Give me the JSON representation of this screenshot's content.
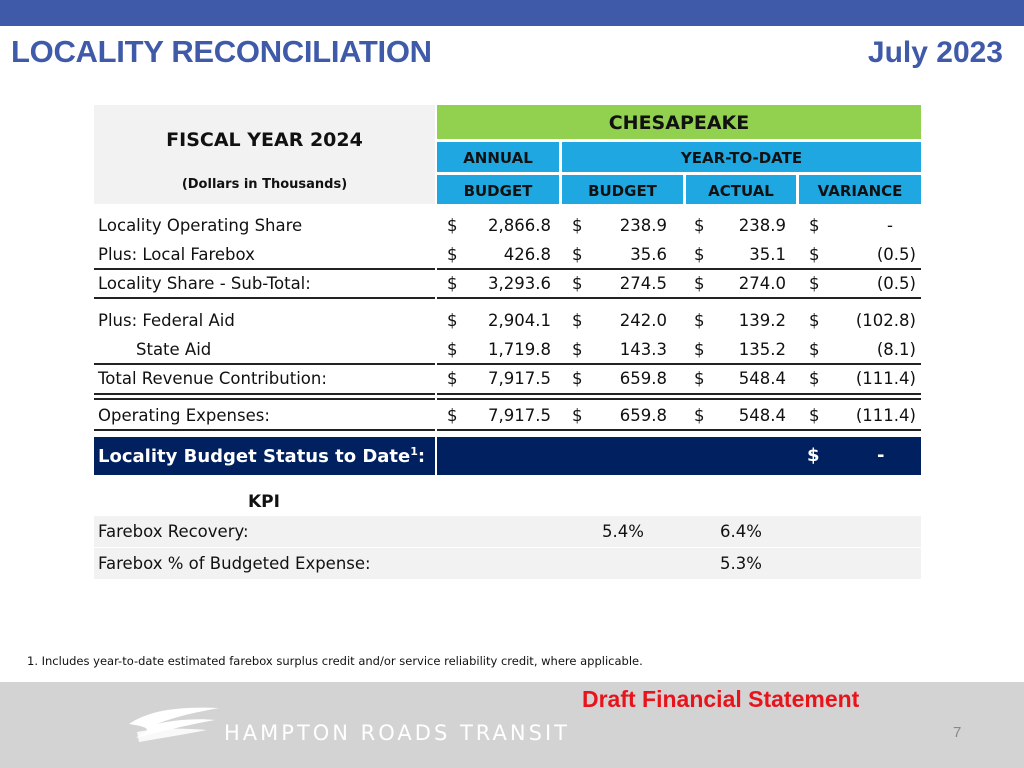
{
  "header": {
    "title": "LOCALITY RECONCILIATION",
    "date": "July 2023"
  },
  "table": {
    "fiscal_year": "FISCAL YEAR 2024",
    "units": "(Dollars in Thousands)",
    "locality": "CHESAPEAKE",
    "annual_top": "ANNUAL",
    "annual_bottom": "BUDGET",
    "ytd": "YEAR-TO-DATE",
    "col_budget": "BUDGET",
    "col_actual": "ACTUAL",
    "col_variance": "VARIANCE",
    "rows": [
      {
        "label": "Locality Operating Share",
        "annual": "2,866.8",
        "budget": "238.9",
        "actual": "238.9",
        "variance": "-"
      },
      {
        "label": "Plus: Local Farebox",
        "annual": "426.8",
        "budget": "35.6",
        "actual": "35.1",
        "variance": "(0.5)"
      },
      {
        "label": "Locality Share - Sub-Total:",
        "annual": "3,293.6",
        "budget": "274.5",
        "actual": "274.0",
        "variance": "(0.5)"
      },
      {
        "label": "Plus: Federal Aid",
        "annual": "2,904.1",
        "budget": "242.0",
        "actual": "139.2",
        "variance": "(102.8)"
      },
      {
        "label": "State Aid",
        "annual": "1,719.8",
        "budget": "143.3",
        "actual": "135.2",
        "variance": "(8.1)"
      },
      {
        "label": "Total Revenue Contribution:",
        "annual": "7,917.5",
        "budget": "659.8",
        "actual": "548.4",
        "variance": "(111.4)"
      },
      {
        "label": "Operating Expenses:",
        "annual": "7,917.5",
        "budget": "659.8",
        "actual": "548.4",
        "variance": "(111.4)"
      }
    ],
    "currency": "$",
    "status_label": "Locality Budget Status to Date",
    "status_sup": "1",
    "status_colon": ":",
    "status_value": "-"
  },
  "kpi": {
    "title": "KPI",
    "rows": [
      {
        "label": "Farebox Recovery:",
        "budget": "5.4%",
        "actual": "6.4%"
      },
      {
        "label": "Farebox % of Budgeted Expense:",
        "budget": "",
        "actual": "5.3%"
      }
    ]
  },
  "footnote": "1.    Includes year-to-date estimated farebox surplus credit and/or service reliability credit, where applicable.",
  "footer": {
    "draft": "Draft Financial Statement",
    "brand": "HAMPTON ROADS TRANSIT",
    "page": "7"
  }
}
